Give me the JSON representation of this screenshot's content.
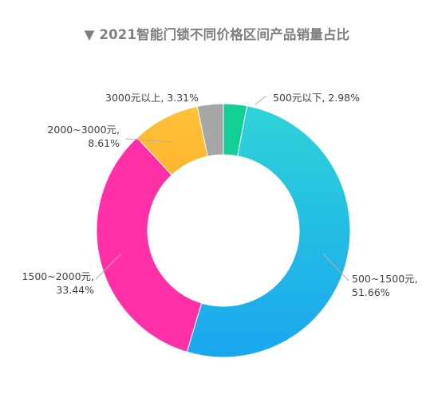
{
  "chart_data": {
    "type": "pie",
    "title": "▼ 2021智能门锁不同价格区间产品销量占比",
    "categories": [
      "500元以下",
      "500~1500元",
      "1500~2000元",
      "2000~3000元",
      "3000元以上"
    ],
    "values": [
      2.98,
      51.66,
      33.44,
      8.61,
      3.31
    ],
    "value_labels": [
      "2.98%",
      "51.66%",
      "33.44%",
      "8.61%",
      "3.31%"
    ],
    "colors": [
      "#12cf96",
      "#19a6ef",
      "#ff2fa6",
      "#ffb52e",
      "#a6a6a6"
    ],
    "gradient_top_colors": [
      "#12cf96",
      "#2fd3d8",
      "#ff2fa6",
      "#ffc23a",
      "#a6a6a6"
    ],
    "donut": true,
    "legend": "none"
  }
}
